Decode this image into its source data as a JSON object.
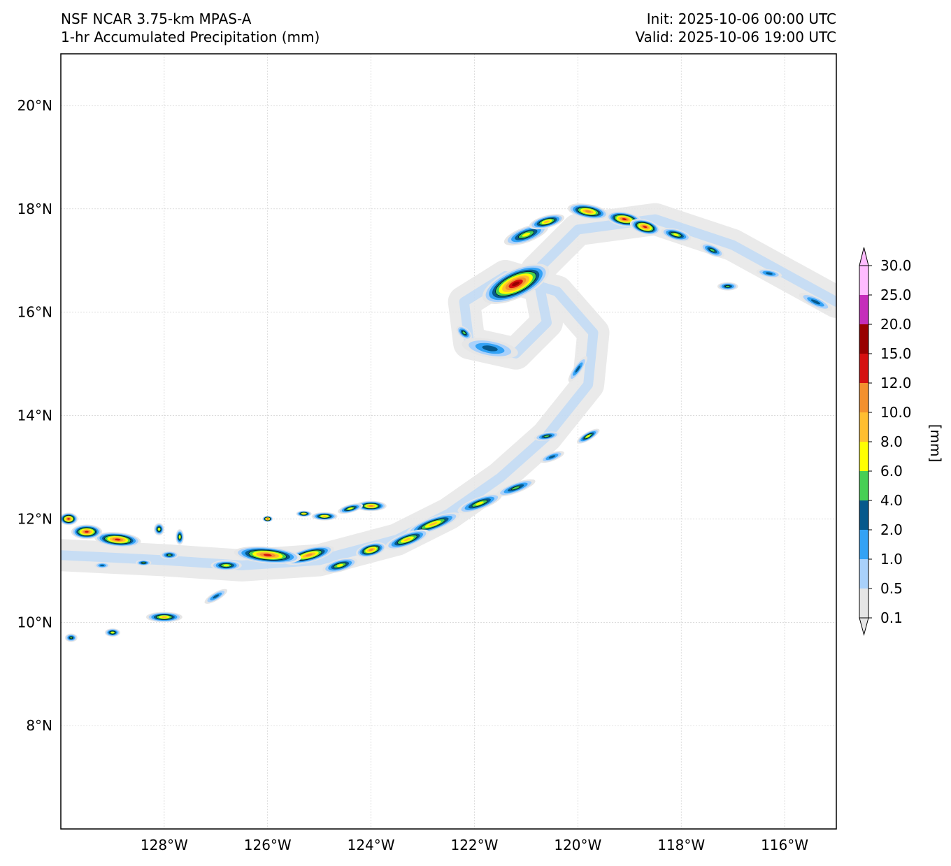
{
  "title": {
    "left_line1": "NSF NCAR 3.75-km MPAS-A",
    "left_line2": "1-hr Accumulated Precipitation (mm)",
    "right_line1": "Init: 2025-10-06 00:00 UTC",
    "right_line2": "Valid: 2025-10-06 19:00 UTC"
  },
  "map": {
    "lon_range": [
      -130.0,
      -115.0
    ],
    "lat_range": [
      6.0,
      21.0
    ],
    "lon_ticks": [
      {
        "value": -128,
        "label": "128°W"
      },
      {
        "value": -126,
        "label": "126°W"
      },
      {
        "value": -124,
        "label": "124°W"
      },
      {
        "value": -122,
        "label": "122°W"
      },
      {
        "value": -120,
        "label": "120°W"
      },
      {
        "value": -118,
        "label": "118°W"
      },
      {
        "value": -116,
        "label": "116°W"
      }
    ],
    "lat_ticks": [
      {
        "value": 20,
        "label": "20°N"
      },
      {
        "value": 18,
        "label": "18°N"
      },
      {
        "value": 16,
        "label": "16°N"
      },
      {
        "value": 14,
        "label": "14°N"
      },
      {
        "value": 12,
        "label": "12°N"
      },
      {
        "value": 10,
        "label": "10°N"
      },
      {
        "value": 8,
        "label": "8°N"
      }
    ],
    "precip_cells": [
      {
        "lon": -121.2,
        "lat": 16.55,
        "rx": 0.7,
        "ry": 0.28,
        "rot": -25,
        "level": 9
      },
      {
        "lon": -121.0,
        "lat": 17.5,
        "rx": 0.45,
        "ry": 0.15,
        "rot": -20,
        "level": 5
      },
      {
        "lon": -120.6,
        "lat": 17.75,
        "rx": 0.35,
        "ry": 0.12,
        "rot": -15,
        "level": 6
      },
      {
        "lon": -119.8,
        "lat": 17.95,
        "rx": 0.4,
        "ry": 0.14,
        "rot": 10,
        "level": 7
      },
      {
        "lon": -119.1,
        "lat": 17.8,
        "rx": 0.35,
        "ry": 0.14,
        "rot": 10,
        "level": 8
      },
      {
        "lon": -118.7,
        "lat": 17.65,
        "rx": 0.3,
        "ry": 0.14,
        "rot": 15,
        "level": 8
      },
      {
        "lon": -118.1,
        "lat": 17.5,
        "rx": 0.3,
        "ry": 0.11,
        "rot": 15,
        "level": 5
      },
      {
        "lon": -117.4,
        "lat": 17.2,
        "rx": 0.25,
        "ry": 0.1,
        "rot": 25,
        "level": 4
      },
      {
        "lon": -117.1,
        "lat": 16.5,
        "rx": 0.2,
        "ry": 0.08,
        "rot": 0,
        "level": 4
      },
      {
        "lon": -116.3,
        "lat": 16.75,
        "rx": 0.25,
        "ry": 0.08,
        "rot": 10,
        "level": 3
      },
      {
        "lon": -115.4,
        "lat": 16.2,
        "rx": 0.35,
        "ry": 0.1,
        "rot": 25,
        "level": 3
      },
      {
        "lon": -121.7,
        "lat": 15.3,
        "rx": 0.55,
        "ry": 0.18,
        "rot": 10,
        "level": 3
      },
      {
        "lon": -122.2,
        "lat": 15.6,
        "rx": 0.18,
        "ry": 0.1,
        "rot": 40,
        "level": 4
      },
      {
        "lon": -120.0,
        "lat": 14.9,
        "rx": 0.3,
        "ry": 0.08,
        "rot": -55,
        "level": 3
      },
      {
        "lon": -120.6,
        "lat": 13.6,
        "rx": 0.25,
        "ry": 0.08,
        "rot": -10,
        "level": 4
      },
      {
        "lon": -119.8,
        "lat": 13.6,
        "rx": 0.25,
        "ry": 0.08,
        "rot": -30,
        "level": 5
      },
      {
        "lon": -120.5,
        "lat": 13.2,
        "rx": 0.25,
        "ry": 0.08,
        "rot": -20,
        "level": 3
      },
      {
        "lon": -121.2,
        "lat": 12.6,
        "rx": 0.4,
        "ry": 0.1,
        "rot": -20,
        "level": 4
      },
      {
        "lon": -121.9,
        "lat": 12.3,
        "rx": 0.45,
        "ry": 0.12,
        "rot": -20,
        "level": 5
      },
      {
        "lon": -122.8,
        "lat": 11.9,
        "rx": 0.55,
        "ry": 0.13,
        "rot": -20,
        "level": 6
      },
      {
        "lon": -123.3,
        "lat": 11.6,
        "rx": 0.45,
        "ry": 0.13,
        "rot": -20,
        "level": 6
      },
      {
        "lon": -124.0,
        "lat": 11.4,
        "rx": 0.3,
        "ry": 0.13,
        "rot": -15,
        "level": 7
      },
      {
        "lon": -124.6,
        "lat": 11.1,
        "rx": 0.35,
        "ry": 0.12,
        "rot": -15,
        "level": 5
      },
      {
        "lon": -124.0,
        "lat": 12.25,
        "rx": 0.3,
        "ry": 0.1,
        "rot": 0,
        "level": 7
      },
      {
        "lon": -125.2,
        "lat": 11.3,
        "rx": 0.5,
        "ry": 0.14,
        "rot": -15,
        "level": 7
      },
      {
        "lon": -126.0,
        "lat": 11.3,
        "rx": 0.65,
        "ry": 0.16,
        "rot": 5,
        "level": 8
      },
      {
        "lon": -126.8,
        "lat": 11.1,
        "rx": 0.3,
        "ry": 0.1,
        "rot": 0,
        "level": 5
      },
      {
        "lon": -128.9,
        "lat": 11.6,
        "rx": 0.45,
        "ry": 0.14,
        "rot": 5,
        "level": 8
      },
      {
        "lon": -129.5,
        "lat": 11.75,
        "rx": 0.3,
        "ry": 0.14,
        "rot": 0,
        "level": 8
      },
      {
        "lon": -129.85,
        "lat": 12.0,
        "rx": 0.18,
        "ry": 0.12,
        "rot": 0,
        "level": 8
      },
      {
        "lon": -128.0,
        "lat": 10.1,
        "rx": 0.35,
        "ry": 0.1,
        "rot": 0,
        "level": 6
      },
      {
        "lon": -129.0,
        "lat": 9.8,
        "rx": 0.15,
        "ry": 0.08,
        "rot": 0,
        "level": 5
      },
      {
        "lon": -129.8,
        "lat": 9.7,
        "rx": 0.12,
        "ry": 0.08,
        "rot": 0,
        "level": 4
      },
      {
        "lon": -127.0,
        "lat": 10.5,
        "rx": 0.25,
        "ry": 0.08,
        "rot": -30,
        "level": 3
      },
      {
        "lon": -126.0,
        "lat": 12.0,
        "rx": 0.1,
        "ry": 0.06,
        "rot": 0,
        "level": 8
      },
      {
        "lon": -124.9,
        "lat": 12.05,
        "rx": 0.25,
        "ry": 0.08,
        "rot": 0,
        "level": 6
      },
      {
        "lon": -125.3,
        "lat": 12.1,
        "rx": 0.15,
        "ry": 0.06,
        "rot": 0,
        "level": 6
      },
      {
        "lon": -124.4,
        "lat": 12.2,
        "rx": 0.25,
        "ry": 0.08,
        "rot": -15,
        "level": 5
      },
      {
        "lon": -128.1,
        "lat": 11.8,
        "rx": 0.1,
        "ry": 0.12,
        "rot": 0,
        "level": 5
      },
      {
        "lon": -127.7,
        "lat": 11.65,
        "rx": 0.08,
        "ry": 0.15,
        "rot": 0,
        "level": 5
      },
      {
        "lon": -127.9,
        "lat": 11.3,
        "rx": 0.18,
        "ry": 0.08,
        "rot": 0,
        "level": 4
      },
      {
        "lon": -128.4,
        "lat": 11.15,
        "rx": 0.15,
        "ry": 0.06,
        "rot": 0,
        "level": 4
      },
      {
        "lon": -129.2,
        "lat": 11.1,
        "rx": 0.15,
        "ry": 0.06,
        "rot": 0,
        "level": 3
      }
    ]
  },
  "colorbar": {
    "levels": [
      {
        "value": "0.1",
        "color": "#e6e6e6"
      },
      {
        "value": "0.5",
        "color": "#a9d1fb"
      },
      {
        "value": "1.0",
        "color": "#33a2f5"
      },
      {
        "value": "2.0",
        "color": "#06598c"
      },
      {
        "value": "4.0",
        "color": "#46cf54"
      },
      {
        "value": "6.0",
        "color": "#ffff00"
      },
      {
        "value": "8.0",
        "color": "#ffbe30"
      },
      {
        "value": "10.0",
        "color": "#f3902d"
      },
      {
        "value": "12.0",
        "color": "#d51010"
      },
      {
        "value": "15.0",
        "color": "#980000"
      },
      {
        "value": "20.0",
        "color": "#c52dba"
      },
      {
        "value": "25.0",
        "color": "#ffbcff"
      },
      {
        "value": "30.0",
        "color": "#ffbcff"
      }
    ],
    "label": "[mm]"
  }
}
